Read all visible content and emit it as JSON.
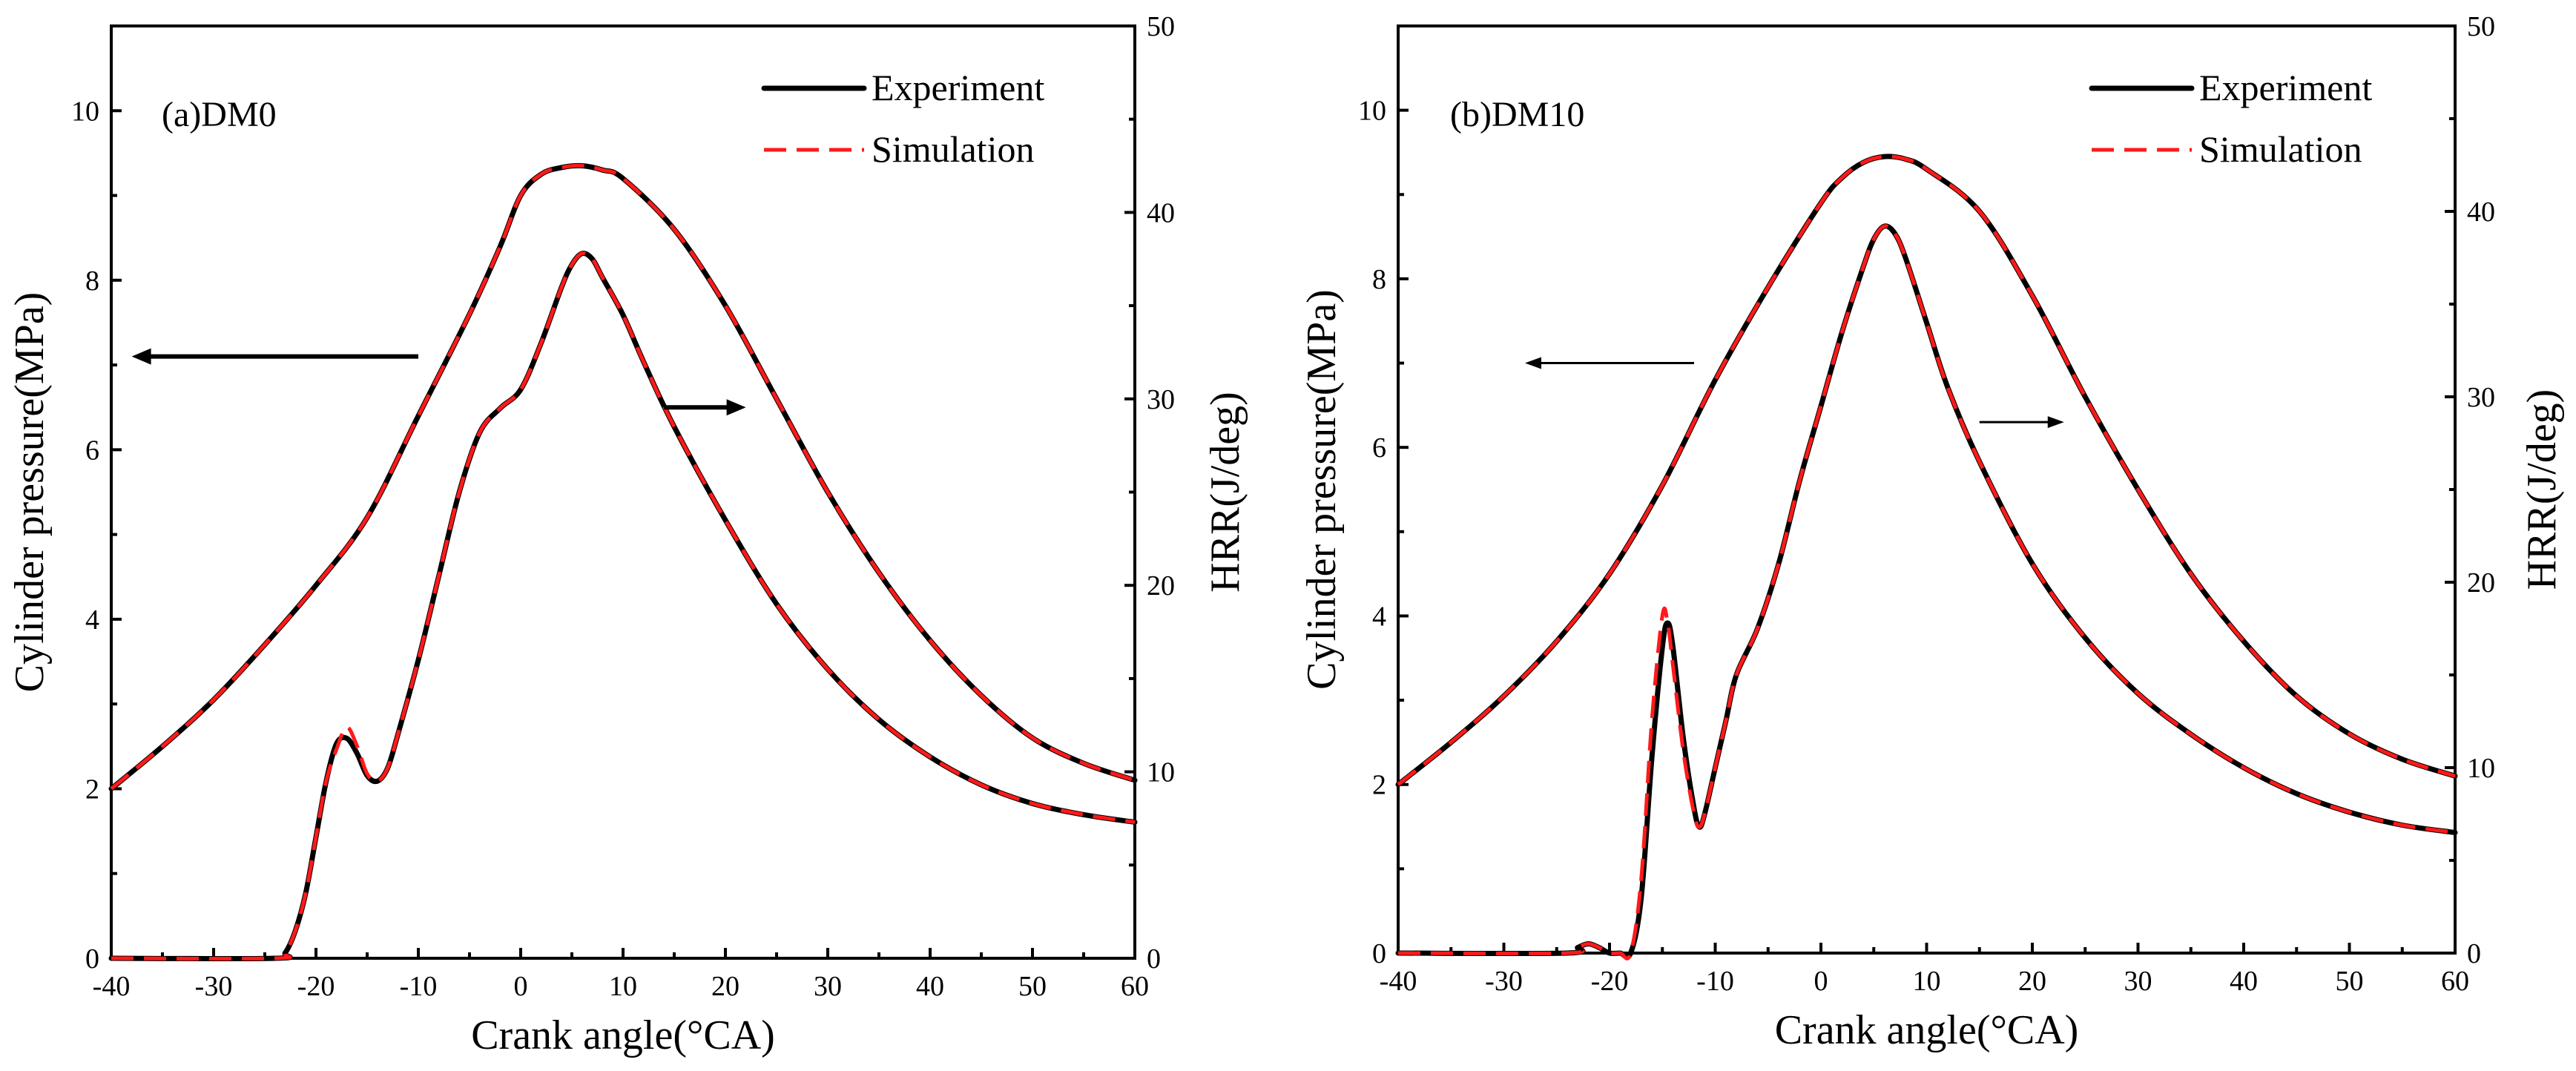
{
  "chart_data": [
    {
      "type": "line",
      "panel_label": "(a)DM0",
      "xlabel": "Crank angle(°CA)",
      "ylabel_left": "Cylinder pressure(MPa)",
      "ylabel_right": "HRR(J/deg)",
      "xlim": [
        -40,
        60
      ],
      "ylim_left": [
        0,
        11
      ],
      "ylim_right": [
        0,
        50
      ],
      "xticks": [
        -40,
        -30,
        -20,
        -10,
        0,
        10,
        20,
        30,
        40,
        50,
        60
      ],
      "yticks_left": [
        0,
        2,
        4,
        6,
        8,
        10
      ],
      "yticks_right": [
        0,
        10,
        20,
        30,
        40,
        50
      ],
      "legend_position": "top-right",
      "legend": [
        "Experiment",
        "Simulation"
      ],
      "colors": {
        "Experiment": "#000000",
        "Simulation": "#ff1a1a"
      },
      "series": [
        {
          "name": "Experiment",
          "quantity": "pressure",
          "axis": "left",
          "x": [
            -40,
            -35,
            -30,
            -25,
            -20,
            -15,
            -10,
            -5,
            -2,
            0,
            2,
            4,
            6,
            8,
            10,
            15,
            20,
            25,
            30,
            35,
            40,
            45,
            50,
            55,
            60
          ],
          "y": [
            2.0,
            2.5,
            3.05,
            3.7,
            4.4,
            5.2,
            6.4,
            7.6,
            8.4,
            9.0,
            9.25,
            9.33,
            9.35,
            9.3,
            9.2,
            8.6,
            7.7,
            6.6,
            5.5,
            4.55,
            3.75,
            3.1,
            2.6,
            2.3,
            2.1
          ]
        },
        {
          "name": "Simulation",
          "quantity": "pressure",
          "axis": "left",
          "x": [
            -40,
            -35,
            -30,
            -25,
            -20,
            -15,
            -10,
            -5,
            -2,
            0,
            2,
            4,
            6,
            8,
            10,
            15,
            20,
            25,
            30,
            35,
            40,
            45,
            50,
            55,
            60
          ],
          "y": [
            2.0,
            2.5,
            3.05,
            3.7,
            4.4,
            5.2,
            6.4,
            7.6,
            8.4,
            9.0,
            9.25,
            9.33,
            9.35,
            9.3,
            9.2,
            8.6,
            7.7,
            6.6,
            5.5,
            4.55,
            3.75,
            3.1,
            2.6,
            2.3,
            2.1
          ]
        },
        {
          "name": "Experiment",
          "quantity": "HRR",
          "axis": "right",
          "x": [
            -40,
            -24,
            -23,
            -22,
            -21,
            -20,
            -19,
            -18,
            -17,
            -16,
            -15,
            -14,
            -13,
            -12,
            -10,
            -8,
            -6,
            -4,
            -2,
            0,
            2,
            4,
            5,
            6,
            7,
            8,
            10,
            12,
            15,
            20,
            25,
            30,
            35,
            40,
            45,
            50,
            55,
            60
          ],
          "y": [
            0,
            0,
            0.3,
            1.5,
            3.5,
            6.5,
            9.5,
            11.5,
            11.8,
            11.0,
            9.8,
            9.5,
            10.2,
            12.0,
            16.0,
            20.5,
            25.0,
            28.2,
            29.5,
            30.5,
            33.0,
            36.0,
            37.2,
            37.8,
            37.5,
            36.5,
            34.5,
            32.0,
            28.5,
            23.5,
            19.0,
            15.5,
            12.8,
            10.8,
            9.3,
            8.3,
            7.7,
            7.3
          ]
        },
        {
          "name": "Simulation",
          "quantity": "HRR",
          "axis": "right",
          "x": [
            -40,
            -24,
            -23,
            -22,
            -21,
            -20,
            -19,
            -18,
            -17,
            -16,
            -15,
            -14,
            -13,
            -12,
            -10,
            -8,
            -6,
            -4,
            -2,
            0,
            2,
            4,
            5,
            6,
            7,
            8,
            10,
            12,
            15,
            20,
            25,
            30,
            35,
            40,
            45,
            50,
            55,
            60
          ],
          "y": [
            0,
            0,
            0.3,
            1.5,
            3.5,
            6.5,
            9.5,
            11.2,
            12.4,
            11.4,
            9.9,
            9.5,
            10.2,
            12.0,
            16.0,
            20.5,
            25.0,
            28.2,
            29.5,
            30.5,
            33.0,
            36.0,
            37.2,
            37.8,
            37.5,
            36.5,
            34.5,
            32.0,
            28.5,
            23.5,
            19.0,
            15.5,
            12.8,
            10.8,
            9.3,
            8.3,
            7.7,
            7.3
          ]
        }
      ],
      "annotations": [
        {
          "type": "arrow",
          "direction": "left",
          "points_to": "pressure axis",
          "from": [
            -10,
            7.1
          ],
          "to": [
            -38,
            7.1
          ]
        },
        {
          "type": "arrow",
          "direction": "right",
          "points_to": "HRR axis",
          "from": [
            14,
            6.5
          ],
          "to": [
            22,
            6.5
          ]
        }
      ]
    },
    {
      "type": "line",
      "panel_label": "(b)DM10",
      "xlabel": "Crank angle(°CA)",
      "ylabel_left": "Cylinder pressure(MPa)",
      "ylabel_right": "HRR(J/deg)",
      "xlim": [
        -40,
        60
      ],
      "ylim_left": [
        0,
        11
      ],
      "ylim_right": [
        0,
        50
      ],
      "xticks": [
        -40,
        -30,
        -20,
        -10,
        0,
        10,
        20,
        30,
        40,
        50,
        60
      ],
      "yticks_left": [
        0,
        2,
        4,
        6,
        8,
        10
      ],
      "yticks_right": [
        0,
        10,
        20,
        30,
        40,
        50
      ],
      "legend_position": "top-right",
      "legend": [
        "Experiment",
        "Simulation"
      ],
      "colors": {
        "Experiment": "#000000",
        "Simulation": "#ff1a1a"
      },
      "series": [
        {
          "name": "Experiment",
          "quantity": "pressure",
          "axis": "left",
          "x": [
            -40,
            -35,
            -30,
            -25,
            -20,
            -15,
            -10,
            -5,
            0,
            2,
            4,
            6,
            8,
            10,
            15,
            20,
            25,
            30,
            35,
            40,
            45,
            50,
            55,
            60
          ],
          "y": [
            2.0,
            2.5,
            3.05,
            3.7,
            4.5,
            5.55,
            6.8,
            7.9,
            8.9,
            9.2,
            9.38,
            9.45,
            9.42,
            9.3,
            8.8,
            7.8,
            6.6,
            5.5,
            4.5,
            3.7,
            3.05,
            2.6,
            2.3,
            2.1
          ]
        },
        {
          "name": "Simulation",
          "quantity": "pressure",
          "axis": "left",
          "x": [
            -40,
            -35,
            -30,
            -25,
            -20,
            -15,
            -10,
            -5,
            0,
            2,
            4,
            6,
            8,
            10,
            15,
            20,
            25,
            30,
            35,
            40,
            45,
            50,
            55,
            60
          ],
          "y": [
            2.0,
            2.5,
            3.05,
            3.7,
            4.5,
            5.55,
            6.8,
            7.9,
            8.9,
            9.2,
            9.38,
            9.45,
            9.42,
            9.3,
            8.8,
            7.8,
            6.6,
            5.5,
            4.5,
            3.7,
            3.05,
            2.6,
            2.3,
            2.1
          ]
        },
        {
          "name": "Experiment",
          "quantity": "HRR",
          "axis": "right",
          "x": [
            -40,
            -24,
            -23,
            -22,
            -21,
            -20,
            -19,
            -18,
            -17,
            -16,
            -15,
            -14.5,
            -14,
            -13,
            -12,
            -11.5,
            -11,
            -10,
            -9,
            -8,
            -6,
            -4,
            -2,
            0,
            2,
            4,
            5,
            6,
            7,
            8,
            10,
            12,
            15,
            20,
            25,
            30,
            35,
            40,
            45,
            50,
            55,
            60
          ],
          "y": [
            0,
            0,
            0.3,
            0.5,
            0.3,
            0,
            0,
            0,
            3.0,
            10.5,
            16.5,
            17.8,
            16.5,
            11.5,
            7.8,
            6.8,
            7.5,
            10.0,
            12.5,
            15.0,
            17.5,
            21.0,
            25.5,
            29.5,
            33.5,
            37.0,
            38.5,
            39.2,
            38.8,
            37.5,
            34.0,
            30.5,
            26.5,
            21.0,
            17.0,
            14.0,
            11.8,
            10.0,
            8.6,
            7.6,
            6.9,
            6.5
          ]
        },
        {
          "name": "Simulation",
          "quantity": "HRR",
          "axis": "right",
          "x": [
            -40,
            -24,
            -23,
            -22,
            -21,
            -20,
            -19,
            -18,
            -17,
            -16,
            -15,
            -14.5,
            -14,
            -13,
            -12,
            -11.5,
            -11,
            -10,
            -9,
            -8,
            -6,
            -4,
            -2,
            0,
            2,
            4,
            5,
            6,
            7,
            8,
            10,
            12,
            15,
            20,
            25,
            30,
            35,
            40,
            45,
            50,
            55,
            60
          ],
          "y": [
            0,
            0,
            0.3,
            0.5,
            0.3,
            0,
            0,
            0,
            4.0,
            12.5,
            18.2,
            17.8,
            15.5,
            10.8,
            7.5,
            6.8,
            7.5,
            10.0,
            12.5,
            15.0,
            17.5,
            21.0,
            25.5,
            29.5,
            33.5,
            37.0,
            38.5,
            39.2,
            38.8,
            37.5,
            34.0,
            30.5,
            26.5,
            21.0,
            17.0,
            14.0,
            11.8,
            10.0,
            8.6,
            7.6,
            6.9,
            6.5
          ]
        }
      ],
      "annotations": [
        {
          "type": "arrow",
          "direction": "left",
          "points_to": "pressure axis",
          "from": [
            -12,
            7.0
          ],
          "to": [
            -28,
            7.0
          ]
        },
        {
          "type": "arrow",
          "direction": "right",
          "points_to": "HRR axis",
          "from": [
            15,
            6.3
          ],
          "to": [
            23,
            6.3
          ]
        }
      ]
    }
  ]
}
